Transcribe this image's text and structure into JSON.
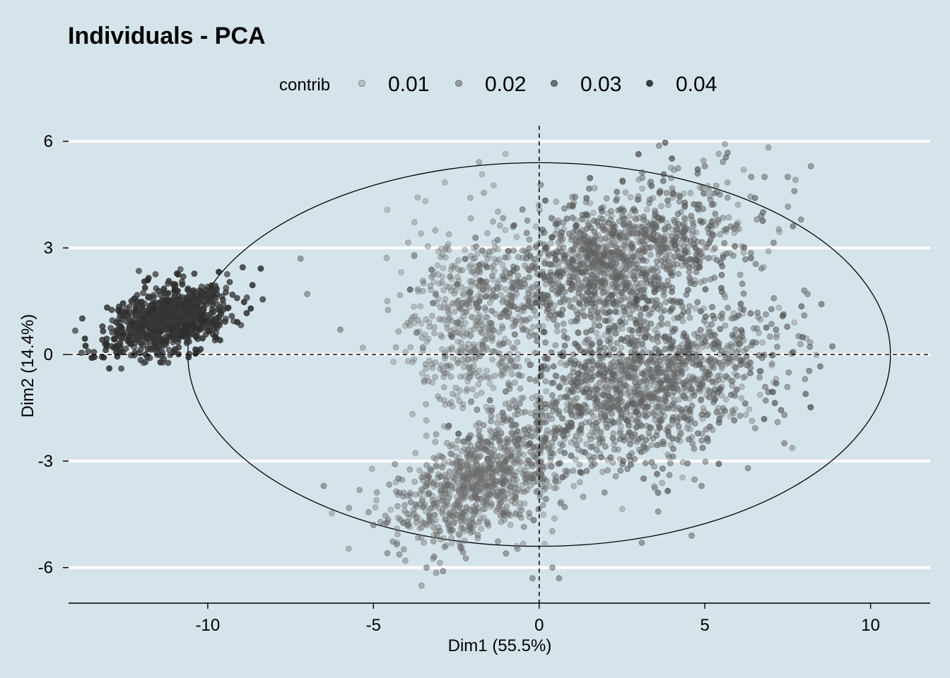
{
  "chart_data": {
    "type": "scatter",
    "title": "Individuals - PCA",
    "xlabel": "Dim1 (55.5%)",
    "ylabel": "Dim2 (14.4%)",
    "xlim": [
      -14.2,
      11.8
    ],
    "ylim": [
      -7.0,
      6.6
    ],
    "xticks": [
      -10,
      -5,
      0,
      5,
      10
    ],
    "xtick_labels": [
      "-10",
      "-5",
      "0",
      "5",
      "10"
    ],
    "yticks": [
      6,
      3,
      0,
      -3,
      -6
    ],
    "ytick_labels": [
      "6",
      "3",
      "0",
      "-3",
      "-6"
    ],
    "grid": "horizontal-major",
    "reference_lines": {
      "x": 0,
      "y": 0,
      "style": "dashed"
    },
    "ellipse": {
      "center": [
        0,
        0
      ],
      "x_radius": 10.6,
      "y_radius": 5.4
    },
    "legend": {
      "title": "contrib",
      "position": "top",
      "entries": [
        {
          "label": "0.01",
          "value": 0.01
        },
        {
          "label": "0.02",
          "value": 0.02
        },
        {
          "label": "0.03",
          "value": 0.03
        },
        {
          "label": "0.04",
          "value": 0.04
        }
      ]
    },
    "clusters": [
      {
        "center": [
          -11.2,
          1.0
        ],
        "sd": [
          0.9,
          0.45
        ],
        "tilt": 0.25,
        "count": 900,
        "contrib_range": [
          0.03,
          0.04
        ]
      },
      {
        "center": [
          2.2,
          2.6
        ],
        "sd": [
          1.9,
          0.95
        ],
        "tilt": 0.2,
        "count": 1400,
        "contrib_range": [
          0.01,
          0.03
        ]
      },
      {
        "center": [
          3.2,
          -0.9
        ],
        "sd": [
          1.9,
          1.05
        ],
        "tilt": 0.2,
        "count": 1400,
        "contrib_range": [
          0.01,
          0.03
        ]
      },
      {
        "center": [
          -1.8,
          -3.6
        ],
        "sd": [
          1.3,
          0.75
        ],
        "tilt": 0.35,
        "count": 900,
        "contrib_range": [
          0.01,
          0.02
        ]
      },
      {
        "center": [
          -2.0,
          0.8
        ],
        "sd": [
          1.0,
          1.4
        ],
        "tilt": 0.0,
        "count": 500,
        "contrib_range": [
          0.01,
          0.015
        ]
      }
    ],
    "outliers": [
      [
        -7.2,
        2.7
      ],
      [
        -7.0,
        1.7
      ],
      [
        -6.0,
        0.7
      ],
      [
        -6.5,
        -3.7
      ],
      [
        -5.0,
        -4.8
      ],
      [
        -3.4,
        -6.0
      ],
      [
        -2.9,
        -6.1
      ],
      [
        0.6,
        -6.3
      ],
      [
        0.4,
        -6.0
      ],
      [
        -0.2,
        -6.3
      ],
      [
        5.0,
        5.3
      ],
      [
        6.4,
        5.0
      ],
      [
        6.8,
        5.0
      ],
      [
        7.5,
        5.0
      ],
      [
        8.2,
        5.3
      ],
      [
        7.7,
        4.6
      ],
      [
        7.9,
        3.8
      ],
      [
        8.0,
        1.8
      ],
      [
        8.1,
        1.7
      ],
      [
        8.0,
        1.1
      ],
      [
        7.4,
        -2.5
      ],
      [
        7.4,
        -1.7
      ],
      [
        6.3,
        -3.2
      ],
      [
        4.9,
        -3.7
      ],
      [
        3.1,
        -5.3
      ],
      [
        4.6,
        -5.1
      ],
      [
        -1.0,
        -5.6
      ]
    ]
  }
}
